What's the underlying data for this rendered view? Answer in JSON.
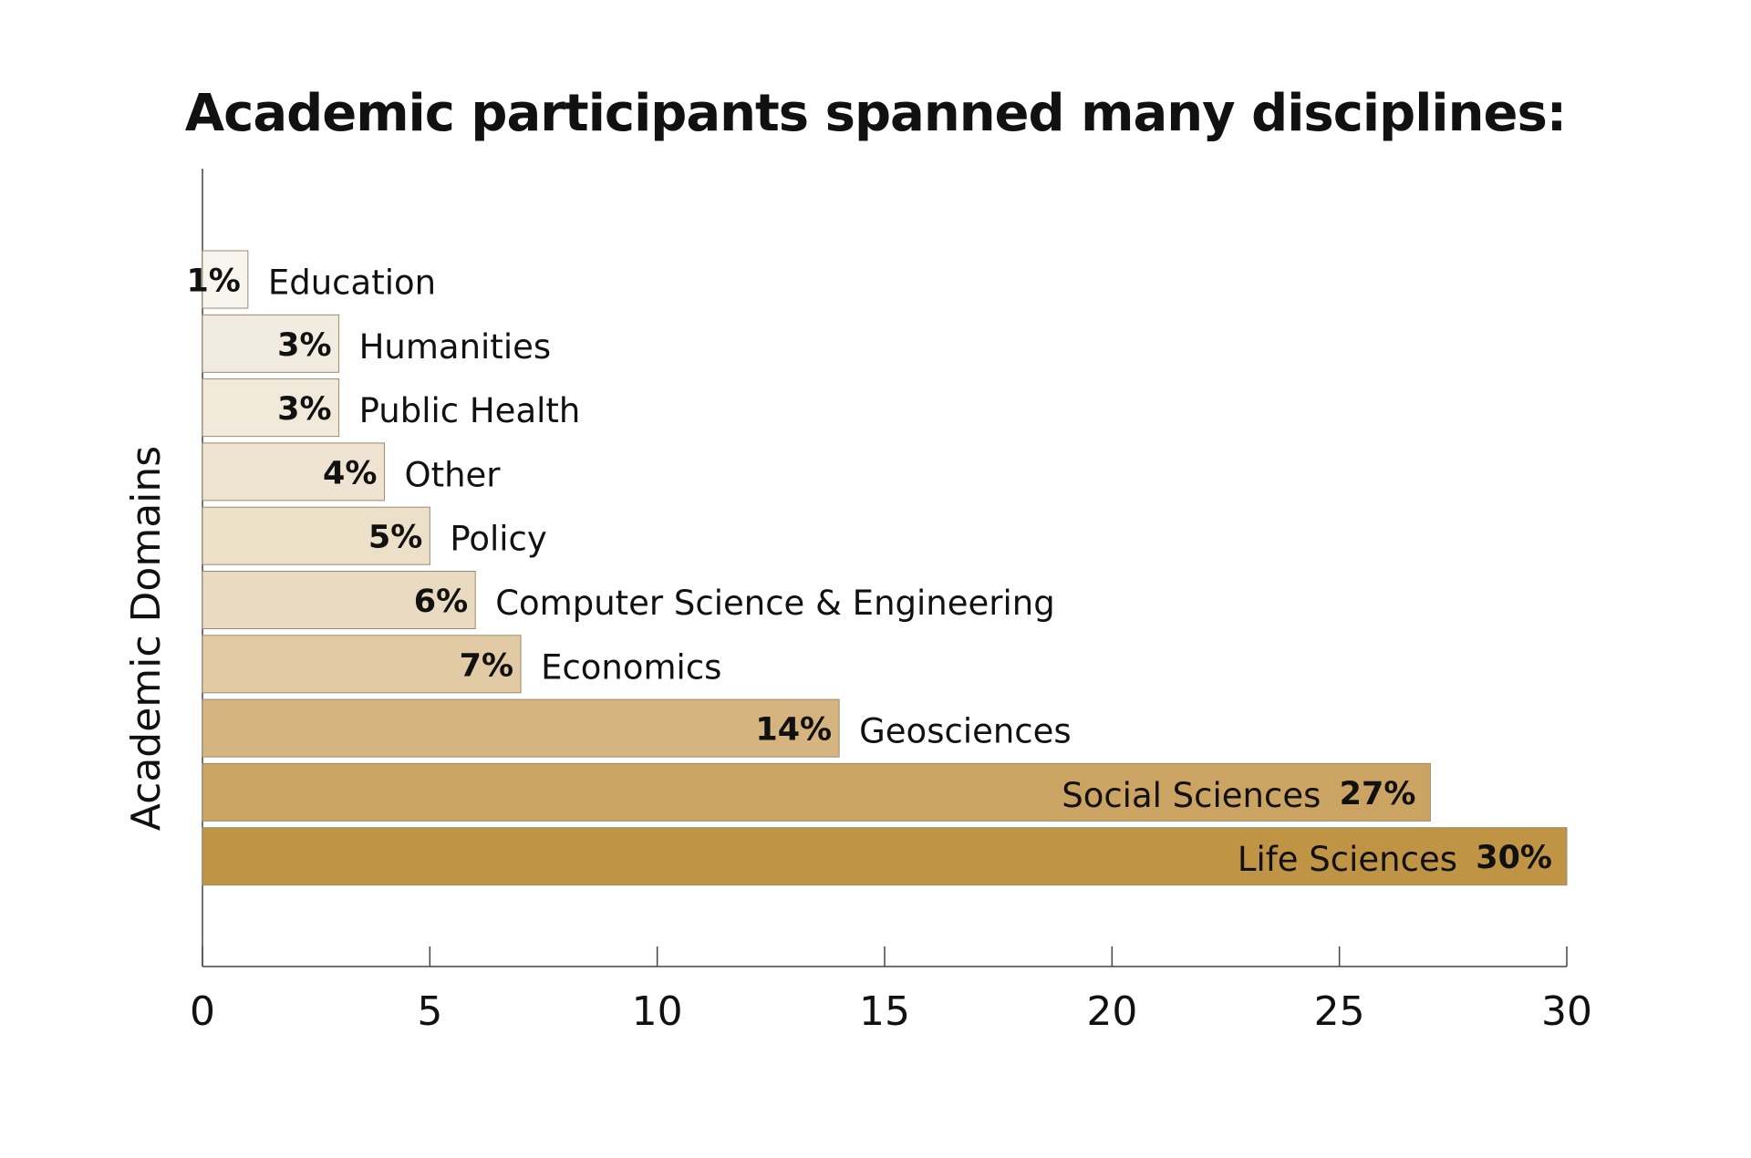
{
  "chart_data": {
    "type": "bar",
    "orientation": "horizontal",
    "title": "Academic participants spanned many disciplines:",
    "xlabel": "",
    "ylabel": "Academic Domains",
    "xlim": [
      0,
      30
    ],
    "xticks": [
      0,
      5,
      10,
      15,
      20,
      25,
      30
    ],
    "categories": [
      "Education",
      "Humanities",
      "Public Health",
      "Other",
      "Policy",
      "Computer Science & Engineering",
      "Economics",
      "Geosciences",
      "Social Sciences",
      "Life Sciences"
    ],
    "values": [
      1,
      3,
      3,
      4,
      5,
      6,
      7,
      14,
      27,
      30
    ],
    "value_labels": [
      "1%",
      "3%",
      "3%",
      "4%",
      "5%",
      "6%",
      "7%",
      "14%",
      "27%",
      "30%"
    ],
    "colors": [
      "#f8f5ef",
      "#f2ebdf",
      "#f1e9da",
      "#efe4d1",
      "#ece0c8",
      "#e9dbc1",
      "#e2cba4",
      "#d5b47f",
      "#cba463",
      "#bf9444"
    ],
    "grid": false,
    "legend": "none"
  }
}
